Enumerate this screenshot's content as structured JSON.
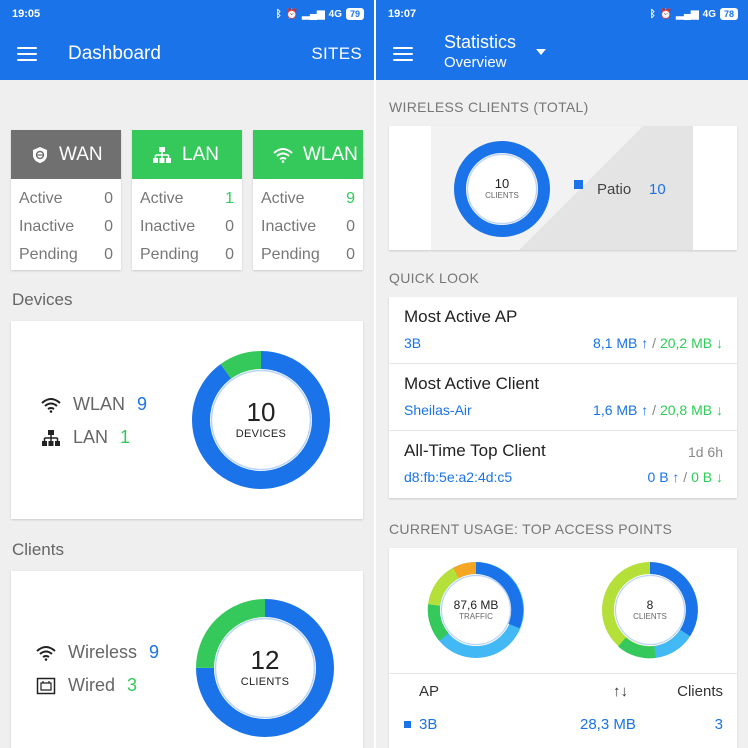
{
  "left": {
    "status": {
      "time": "19:05",
      "network": "4G",
      "battery": "79"
    },
    "appbar": {
      "title": "Dashboard",
      "sites": "SITES"
    },
    "counters": [
      {
        "name": "WAN",
        "color": "#707070",
        "icon": "globe-shield-icon",
        "rows": [
          {
            "label": "Active",
            "value": "0"
          },
          {
            "label": "Inactive",
            "value": "0"
          },
          {
            "label": "Pending",
            "value": "0"
          }
        ]
      },
      {
        "name": "LAN",
        "color": "#35c95b",
        "icon": "network-tree-icon",
        "rows": [
          {
            "label": "Active",
            "value": "1"
          },
          {
            "label": "Inactive",
            "value": "0"
          },
          {
            "label": "Pending",
            "value": "0"
          }
        ]
      },
      {
        "name": "WLAN",
        "color": "#35c95b",
        "icon": "wifi-icon",
        "rows": [
          {
            "label": "Active",
            "value": "9"
          },
          {
            "label": "Inactive",
            "value": "0"
          },
          {
            "label": "Pending",
            "value": "0"
          }
        ]
      }
    ],
    "devices": {
      "label": "Devices",
      "wlan_label": "WLAN",
      "wlan_value": "9",
      "lan_label": "LAN",
      "lan_value": "1",
      "total": "10",
      "unit": "DEVICES",
      "wlan_count": 9,
      "lan_count": 1
    },
    "clients": {
      "label": "Clients",
      "wireless_label": "Wireless",
      "wireless_value": "9",
      "wired_label": "Wired",
      "wired_value": "3",
      "total": "12",
      "unit": "CLIENTS",
      "wireless_count": 9,
      "wired_count": 3
    }
  },
  "right": {
    "status": {
      "time": "19:07",
      "network": "4G",
      "battery": "78"
    },
    "appbar": {
      "title": "Statistics",
      "subtitle": "Overview"
    },
    "wireless": {
      "label": "WIRELESS CLIENTS (TOTAL)",
      "total": "10",
      "unit": "CLIENTS",
      "legend_name": "Patio",
      "legend_value": "10"
    },
    "quicklook": {
      "label": "QUICK LOOK",
      "rows": [
        {
          "name": "Most Active AP",
          "sub": "3B",
          "up": "8,1 MB",
          "down": "20,2 MB",
          "age": ""
        },
        {
          "name": "Most Active Client",
          "sub": "Sheilas-Air",
          "up": "1,6 MB",
          "down": "20,8 MB",
          "age": ""
        },
        {
          "name": "All-Time Top Client",
          "sub": "d8:fb:5e:a2:4d:c5",
          "up": "0 B",
          "down": "0 B",
          "age": "1d 6h"
        }
      ]
    },
    "usage": {
      "label": "CURRENT USAGE: TOP ACCESS POINTS",
      "traffic_total": "87,6 MB",
      "traffic_unit": "TRAFFIC",
      "clients_total": "8",
      "clients_unit": "CLIENTS",
      "table": {
        "col_ap": "AP",
        "col_sort": "↑↓",
        "col_clients": "Clients",
        "rows": [
          {
            "ap": "3B",
            "traffic": "28,3 MB",
            "clients": "3"
          }
        ]
      }
    }
  },
  "colors": {
    "blue": "#1a73e8",
    "green": "#35c95b",
    "light_blue": "#42b8f5",
    "light_green": "#b5e03a",
    "orange": "#f5a623",
    "gray": "#707070"
  }
}
